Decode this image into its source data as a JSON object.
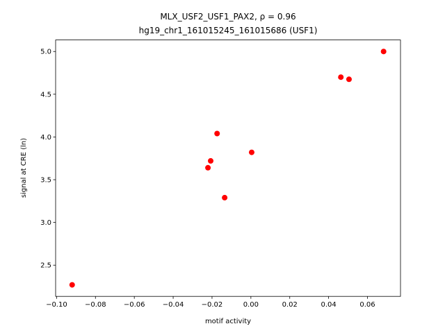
{
  "chart_data": {
    "type": "scatter",
    "title": "MLX_USF2_USF1_PAX2, ρ = 0.96",
    "subtitle": "hg19_chr1_161015245_161015686 (USF1)",
    "x_label": "motif activity",
    "y_label": "signal at CRE (ln)",
    "color": "#ff0000",
    "x": [
      -0.092,
      -0.0221,
      -0.0207,
      -0.0174,
      -0.0135,
      0.0004,
      0.0463,
      0.0505,
      0.0683
    ],
    "values": [
      2.27,
      3.64,
      3.72,
      4.04,
      3.29,
      3.82,
      4.7,
      4.675,
      5.0
    ],
    "xlim": [
      -0.1005,
      0.077
    ],
    "ylim": [
      2.135,
      5.135
    ],
    "xticks": [
      {
        "value": -0.1,
        "label": "−0.10"
      },
      {
        "value": -0.08,
        "label": "−0.08"
      },
      {
        "value": -0.06,
        "label": "−0.06"
      },
      {
        "value": -0.04,
        "label": "−0.04"
      },
      {
        "value": -0.02,
        "label": "−0.02"
      },
      {
        "value": 0,
        "label": "0.00"
      },
      {
        "value": 0.02,
        "label": "0.02"
      },
      {
        "value": 0.04,
        "label": "0.04"
      },
      {
        "value": 0.06,
        "label": "0.06"
      }
    ],
    "yticks": [
      2.5,
      {
        "value": 3,
        "label": "3.0"
      },
      3.5,
      {
        "value": 4,
        "label": "4.0"
      },
      4.5,
      {
        "value": 5,
        "label": "5.0"
      }
    ]
  }
}
